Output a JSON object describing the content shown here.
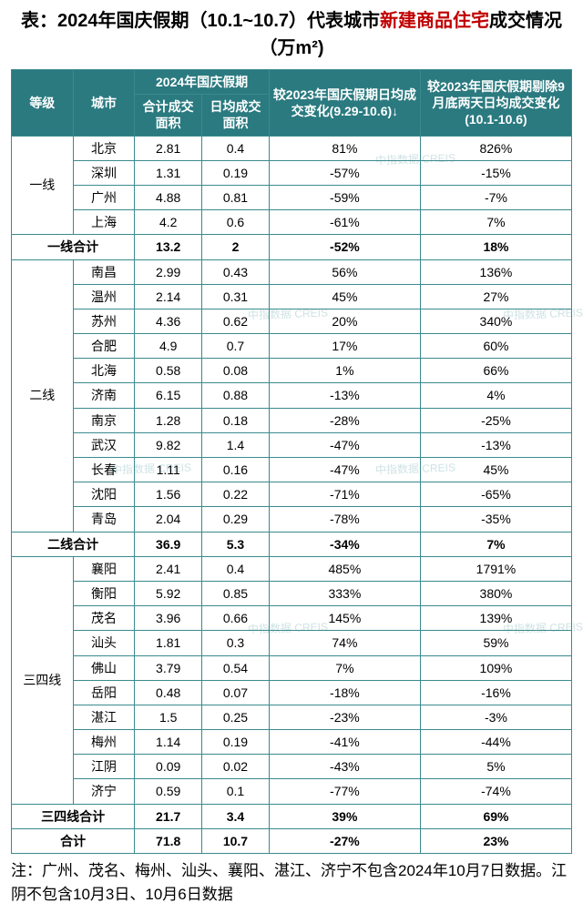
{
  "title_prefix": "表：2024年国庆假期（10.1~10.7）代表城市",
  "title_highlight": "新建商品住宅",
  "title_suffix": "成交情况（万m²)",
  "headers": {
    "tier": "等级",
    "city": "城市",
    "group_2024": "2024年国庆假期",
    "total_area": "合计成交面积",
    "daily_area": "日均成交面积",
    "vs2023_daily": "较2023年国庆假期日均成交变化(9.29-10.6)↓",
    "vs2023_ex2": "较2023年国庆假期剔除9月底两天日均成交变化(10.1-10.6)"
  },
  "tiers": [
    {
      "name": "一线",
      "rows": [
        {
          "city": "北京",
          "a": "2.81",
          "b": "0.4",
          "c": "81%",
          "d": "826%"
        },
        {
          "city": "深圳",
          "a": "1.31",
          "b": "0.19",
          "c": "-57%",
          "d": "-15%"
        },
        {
          "city": "广州",
          "a": "4.88",
          "b": "0.81",
          "c": "-59%",
          "d": "-7%"
        },
        {
          "city": "上海",
          "a": "4.2",
          "b": "0.6",
          "c": "-61%",
          "d": "7%"
        }
      ],
      "subtotal": {
        "label": "一线合计",
        "a": "13.2",
        "b": "2",
        "c": "-52%",
        "d": "18%"
      }
    },
    {
      "name": "二线",
      "rows": [
        {
          "city": "南昌",
          "a": "2.99",
          "b": "0.43",
          "c": "56%",
          "d": "136%"
        },
        {
          "city": "温州",
          "a": "2.14",
          "b": "0.31",
          "c": "45%",
          "d": "27%"
        },
        {
          "city": "苏州",
          "a": "4.36",
          "b": "0.62",
          "c": "20%",
          "d": "340%"
        },
        {
          "city": "合肥",
          "a": "4.9",
          "b": "0.7",
          "c": "17%",
          "d": "60%"
        },
        {
          "city": "北海",
          "a": "0.58",
          "b": "0.08",
          "c": "1%",
          "d": "66%"
        },
        {
          "city": "济南",
          "a": "6.15",
          "b": "0.88",
          "c": "-13%",
          "d": "4%"
        },
        {
          "city": "南京",
          "a": "1.28",
          "b": "0.18",
          "c": "-28%",
          "d": "-25%"
        },
        {
          "city": "武汉",
          "a": "9.82",
          "b": "1.4",
          "c": "-47%",
          "d": "-13%"
        },
        {
          "city": "长春",
          "a": "1.11",
          "b": "0.16",
          "c": "-47%",
          "d": "45%"
        },
        {
          "city": "沈阳",
          "a": "1.56",
          "b": "0.22",
          "c": "-71%",
          "d": "-65%"
        },
        {
          "city": "青岛",
          "a": "2.04",
          "b": "0.29",
          "c": "-78%",
          "d": "-35%"
        }
      ],
      "subtotal": {
        "label": "二线合计",
        "a": "36.9",
        "b": "5.3",
        "c": "-34%",
        "d": "7%"
      }
    },
    {
      "name": "三四线",
      "rows": [
        {
          "city": "襄阳",
          "a": "2.41",
          "b": "0.4",
          "c": "485%",
          "d": "1791%"
        },
        {
          "city": "衡阳",
          "a": "5.92",
          "b": "0.85",
          "c": "333%",
          "d": "380%"
        },
        {
          "city": "茂名",
          "a": "3.96",
          "b": "0.66",
          "c": "145%",
          "d": "139%"
        },
        {
          "city": "汕头",
          "a": "1.81",
          "b": "0.3",
          "c": "74%",
          "d": "59%"
        },
        {
          "city": "佛山",
          "a": "3.79",
          "b": "0.54",
          "c": "7%",
          "d": "109%"
        },
        {
          "city": "岳阳",
          "a": "0.48",
          "b": "0.07",
          "c": "-18%",
          "d": "-16%"
        },
        {
          "city": "湛江",
          "a": "1.5",
          "b": "0.25",
          "c": "-23%",
          "d": "-3%"
        },
        {
          "city": "梅州",
          "a": "1.14",
          "b": "0.19",
          "c": "-41%",
          "d": "-44%"
        },
        {
          "city": "江阴",
          "a": "0.09",
          "b": "0.02",
          "c": "-43%",
          "d": "5%"
        },
        {
          "city": "济宁",
          "a": "0.59",
          "b": "0.1",
          "c": "-77%",
          "d": "-74%"
        }
      ],
      "subtotal": {
        "label": "三四线合计",
        "a": "21.7",
        "b": "3.4",
        "c": "39%",
        "d": "69%"
      }
    }
  ],
  "grand": {
    "label": "合计",
    "a": "71.8",
    "b": "10.7",
    "c": "-27%",
    "d": "23%"
  },
  "footnote": "注：广州、茂名、梅州、汕头、襄阳、湛江、济宁不包含2024年10月7日数据。江阴不包含10月3日、10月6日数据",
  "colors": {
    "header_bg": "#2a7a80",
    "border": "#3a8a8f",
    "highlight": "#c00000",
    "watermark": "rgba(58,138,143,0.25)"
  },
  "watermark_text": "中指数据 CREIS"
}
